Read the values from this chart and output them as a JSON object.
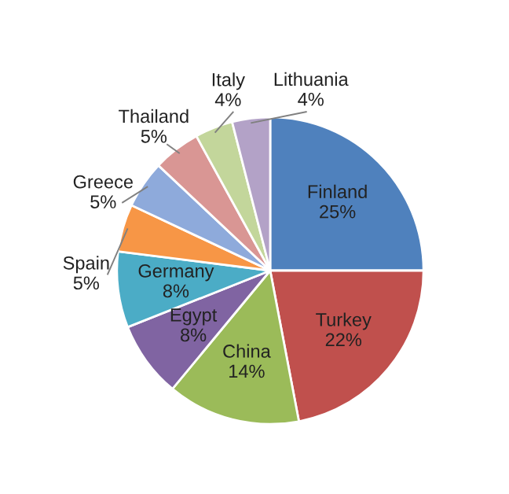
{
  "chart_data": {
    "type": "pie",
    "categories": [
      "Finland",
      "Turkey",
      "China",
      "Egypt",
      "Germany",
      "Spain",
      "Greece",
      "Thailand",
      "Italy",
      "Lithuania"
    ],
    "values": [
      25,
      22,
      14,
      8,
      8,
      5,
      5,
      5,
      4,
      4
    ],
    "value_labels": [
      "25%",
      "22%",
      "14%",
      "8%",
      "8%",
      "5%",
      "5%",
      "5%",
      "4%",
      "4%"
    ],
    "colors": [
      "#4f81bd",
      "#c0504d",
      "#9bbb59",
      "#8064a2",
      "#4bacc6",
      "#f79646",
      "#8eaadb",
      "#d99694",
      "#c3d69b",
      "#b3a2c7"
    ],
    "legend": false
  }
}
